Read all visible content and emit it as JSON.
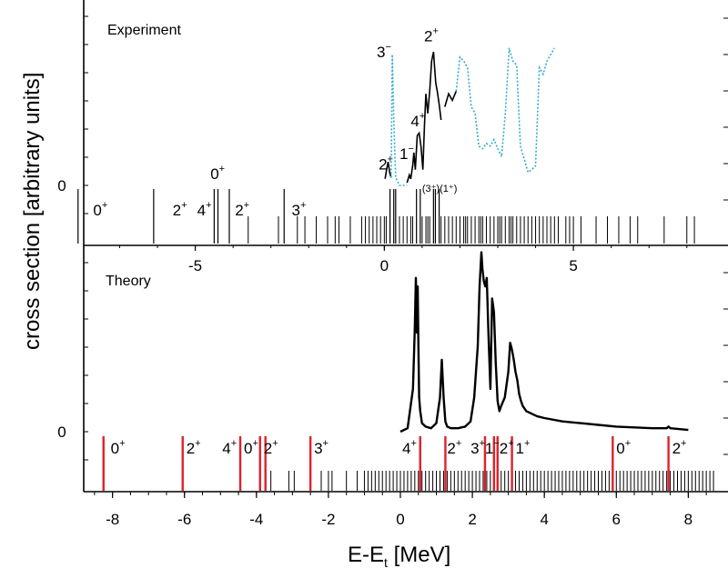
{
  "chart_data": [
    {
      "type": "line",
      "panel": "top",
      "title": "Experiment",
      "ylabel": "cross section [arbitrary units]",
      "xlim": [
        -8.8,
        8.8
      ],
      "xticks": [
        "-5",
        "0",
        "5"
      ],
      "yticks": [
        "0"
      ],
      "spectrum_series": [
        {
          "name": "solid",
          "color": "#000000",
          "style": "solid",
          "x": [
            0.02,
            0.06,
            0.1,
            0.14,
            0.18
          ],
          "y": [
            0.05,
            0.12,
            0.18,
            0.1,
            0.06
          ]
        },
        {
          "name": "dotted",
          "color": "#33aacc",
          "style": "dotted",
          "x": [
            0.18,
            0.21,
            0.25,
            0.3,
            0.4,
            0.5,
            0.6
          ],
          "y": [
            0.06,
            1.0,
            0.5,
            0.06,
            0.0,
            0.0,
            0.0
          ]
        },
        {
          "name": "solid",
          "color": "#000000",
          "style": "solid",
          "x": [
            0.6,
            0.66,
            0.7,
            0.75,
            0.78,
            0.82,
            0.87,
            0.92,
            0.97,
            1.02,
            1.06,
            1.1,
            1.15,
            1.2,
            1.25,
            1.3,
            1.33,
            1.36,
            1.4,
            1.45,
            1.5
          ],
          "y": [
            0.02,
            0.08,
            0.05,
            0.15,
            0.25,
            0.12,
            0.38,
            0.4,
            0.3,
            0.12,
            0.45,
            0.7,
            0.55,
            0.72,
            0.95,
            1.02,
            0.9,
            0.78,
            0.72,
            0.62,
            0.5
          ]
        },
        {
          "name": "solid",
          "color": "#000000",
          "style": "solid",
          "x": [
            1.6,
            1.7,
            1.8,
            1.9
          ],
          "y": [
            0.6,
            0.7,
            0.65,
            0.72
          ]
        },
        {
          "name": "dotted",
          "color": "#33aacc",
          "style": "dotted",
          "x": [
            1.9,
            2.0,
            2.1,
            2.2,
            2.3,
            2.4,
            2.5,
            2.6,
            2.7,
            2.8,
            2.9,
            3.0,
            3.1,
            3.2,
            3.3,
            3.4,
            3.5,
            3.6,
            3.7,
            3.8,
            3.9,
            4.0,
            4.1,
            4.2,
            4.3,
            4.4,
            4.5
          ],
          "y": [
            0.72,
            0.98,
            0.95,
            0.9,
            0.6,
            0.55,
            0.3,
            0.28,
            0.32,
            0.3,
            0.35,
            0.28,
            0.22,
            0.55,
            1.05,
            0.95,
            0.92,
            0.3,
            0.2,
            0.1,
            0.12,
            0.15,
            0.9,
            0.85,
            0.95,
            1.0,
            1.05
          ]
        }
      ],
      "level_labels": [
        {
          "base": "0",
          "sup": "+",
          "x": -7.7,
          "row": "low"
        },
        {
          "base": "2",
          "sup": "+",
          "x": -5.6,
          "row": "low"
        },
        {
          "base": "4",
          "sup": "+",
          "x": -4.95,
          "row": "low"
        },
        {
          "base": "0",
          "sup": "+",
          "x": -4.6,
          "row": "high"
        },
        {
          "base": "2",
          "sup": "+",
          "x": -3.95,
          "row": "low"
        },
        {
          "base": "3",
          "sup": "+",
          "x": -2.45,
          "row": "low"
        }
      ],
      "peak_labels": [
        {
          "base": "3",
          "sup": "−",
          "x": -0.2,
          "yv": 0.98
        },
        {
          "base": "2",
          "sup": "+",
          "x": 1.05,
          "yv": 1.1
        },
        {
          "base": "4",
          "sup": "+",
          "x": 0.7,
          "yv": 0.45
        },
        {
          "base": "1",
          "sup": "−",
          "x": 0.4,
          "yv": 0.2
        },
        {
          "base": "2",
          "sup": "+",
          "x": -0.15,
          "yv": 0.12
        }
      ],
      "paren_label": "(3⁺)(1⁺)",
      "level_lines_x": [
        -8.1,
        -6.1,
        -4.5,
        -4.4,
        -4.1,
        -2.65,
        0.15,
        0.25,
        0.3,
        0.85,
        0.95,
        1.3,
        1.35,
        1.45
      ],
      "dense_lines_x": [
        -3.6,
        -2.8,
        -2.3,
        -2.1,
        -1.8,
        -1.5,
        -1.3,
        -1.2,
        -0.9,
        -0.6,
        -0.5,
        -0.4,
        -0.3,
        -0.2,
        -0.1,
        0.0,
        0.05,
        0.4,
        0.5,
        0.6,
        0.7,
        0.75,
        1.0,
        1.1,
        1.15,
        1.2,
        1.5,
        1.6,
        1.7,
        1.8,
        1.9,
        2.0,
        2.1,
        2.15,
        2.2,
        2.3,
        2.4,
        2.5,
        2.55,
        2.6,
        2.7,
        2.8,
        2.9,
        3.0,
        3.05,
        3.1,
        3.2,
        3.3,
        3.35,
        3.4,
        3.5,
        3.6,
        3.7,
        3.8,
        3.9,
        4.0,
        4.1,
        4.2,
        4.3,
        4.4,
        4.5,
        4.6,
        4.8,
        4.9,
        5.0,
        5.2,
        5.6,
        5.9,
        6.2,
        6.5,
        6.7,
        7.4,
        8.0,
        8.2
      ]
    },
    {
      "type": "line",
      "panel": "bottom",
      "title": "Theory",
      "xlabel": "E-E",
      "xlabel_sub": "t",
      "xlabel_unit": " [MeV]",
      "xlim": [
        -8.8,
        8.8
      ],
      "xticks": [
        "-8",
        "-6",
        "-4",
        "-2",
        "0",
        "2",
        "4",
        "6",
        "8"
      ],
      "yticks": [
        "0"
      ],
      "series": [
        {
          "name": "solid",
          "color": "#000000",
          "style": "solid",
          "x": [
            0.0,
            0.2,
            0.35,
            0.4,
            0.43,
            0.46,
            0.48,
            0.5,
            0.52,
            0.55,
            0.6,
            0.7,
            0.85,
            1.0,
            1.1,
            1.15,
            1.2,
            1.25,
            1.3,
            1.4,
            1.6,
            1.8,
            1.95,
            2.05,
            2.15,
            2.2,
            2.25,
            2.28,
            2.32,
            2.36,
            2.4,
            2.45,
            2.5,
            2.55,
            2.6,
            2.65,
            2.7,
            2.75,
            2.8,
            2.9,
            3.0,
            3.05,
            3.1,
            3.15,
            3.2,
            3.25,
            3.3,
            3.35,
            3.4,
            3.5,
            3.6,
            3.7,
            3.8,
            4.0,
            4.5,
            5.0,
            5.5,
            6.0,
            6.5,
            7.0,
            7.4,
            7.45,
            7.5,
            8.0
          ],
          "y": [
            0.0,
            0.02,
            0.25,
            0.6,
            0.9,
            0.58,
            0.85,
            0.5,
            0.2,
            0.12,
            0.05,
            0.03,
            0.02,
            0.05,
            0.2,
            0.42,
            0.2,
            0.06,
            0.03,
            0.02,
            0.02,
            0.03,
            0.06,
            0.2,
            0.5,
            0.85,
            1.05,
            0.95,
            0.88,
            0.85,
            0.9,
            0.55,
            0.25,
            0.78,
            0.7,
            0.4,
            0.18,
            0.12,
            0.15,
            0.2,
            0.35,
            0.52,
            0.48,
            0.42,
            0.35,
            0.3,
            0.22,
            0.18,
            0.15,
            0.12,
            0.11,
            0.1,
            0.09,
            0.08,
            0.06,
            0.05,
            0.04,
            0.03,
            0.025,
            0.02,
            0.02,
            0.03,
            0.02,
            0.01
          ]
        }
      ],
      "level_labels": [
        {
          "base": "0",
          "sup": "+",
          "x": -8.05
        },
        {
          "base": "2",
          "sup": "+",
          "x": -5.95
        },
        {
          "base": "4",
          "sup": "+",
          "x": -4.95
        },
        {
          "base": "0",
          "sup": "+",
          "x": -4.35
        },
        {
          "base": "2",
          "sup": "+",
          "x": -3.8
        },
        {
          "base": "3",
          "sup": "+",
          "x": -2.4
        },
        {
          "base": "4",
          "sup": "+",
          "x": 0.05
        },
        {
          "base": "2",
          "sup": "+",
          "x": 1.3
        },
        {
          "base": "3",
          "sup": "+",
          "x": 1.95
        },
        {
          "base": "1",
          "sup": "−",
          "x": 2.35
        },
        {
          "base": "2",
          "sup": "+",
          "x": 2.75
        },
        {
          "base": "1",
          "sup": "+",
          "x": 3.2
        },
        {
          "base": "0",
          "sup": "+",
          "x": 6.0
        },
        {
          "base": "2",
          "sup": "+",
          "x": 7.55
        }
      ],
      "red_lines_x": [
        -8.25,
        -6.05,
        -4.45,
        -3.9,
        -3.75,
        -2.5,
        0.55,
        1.25,
        2.35,
        2.6,
        2.7,
        3.1,
        5.9,
        7.45
      ],
      "dense_lines_x": [
        -3.6,
        -3.1,
        -2.95,
        -2.2,
        -2.0,
        -1.9,
        -1.5,
        -1.2,
        -1.0,
        -0.9,
        -0.8,
        -0.7,
        -0.6,
        -0.5,
        -0.4,
        -0.3,
        -0.2,
        -0.1,
        0.0,
        0.1,
        0.2,
        0.3,
        0.4,
        0.5,
        0.6,
        0.7,
        0.8,
        0.9,
        1.0,
        1.1,
        1.2,
        1.3,
        1.4,
        1.5,
        1.6,
        1.7,
        1.8,
        1.9,
        2.0,
        2.1,
        2.2,
        2.3,
        2.4,
        2.5,
        2.6,
        2.7,
        2.8,
        2.9,
        3.0,
        3.1,
        3.2,
        3.3,
        3.4,
        3.5,
        3.6,
        3.7,
        3.8,
        3.9,
        4.0,
        4.1,
        4.2,
        4.3,
        4.4,
        4.5,
        4.6,
        4.7,
        4.8,
        4.9,
        5.0,
        5.1,
        5.2,
        5.3,
        5.4,
        5.5,
        5.6,
        5.7,
        5.8,
        5.9,
        6.0,
        6.1,
        6.2,
        6.3,
        6.4,
        6.5,
        6.6,
        6.7,
        6.8,
        6.9,
        7.0,
        7.1,
        7.2,
        7.3,
        7.4,
        7.5,
        7.6,
        7.7,
        7.8,
        7.9,
        8.0,
        8.1,
        8.2,
        8.3,
        8.4,
        8.5,
        8.6,
        8.7
      ]
    }
  ],
  "colors": {
    "axis": "#000000",
    "red_level": "#e0202a",
    "dotted": "#33aacc",
    "spectrum": "#000000"
  }
}
